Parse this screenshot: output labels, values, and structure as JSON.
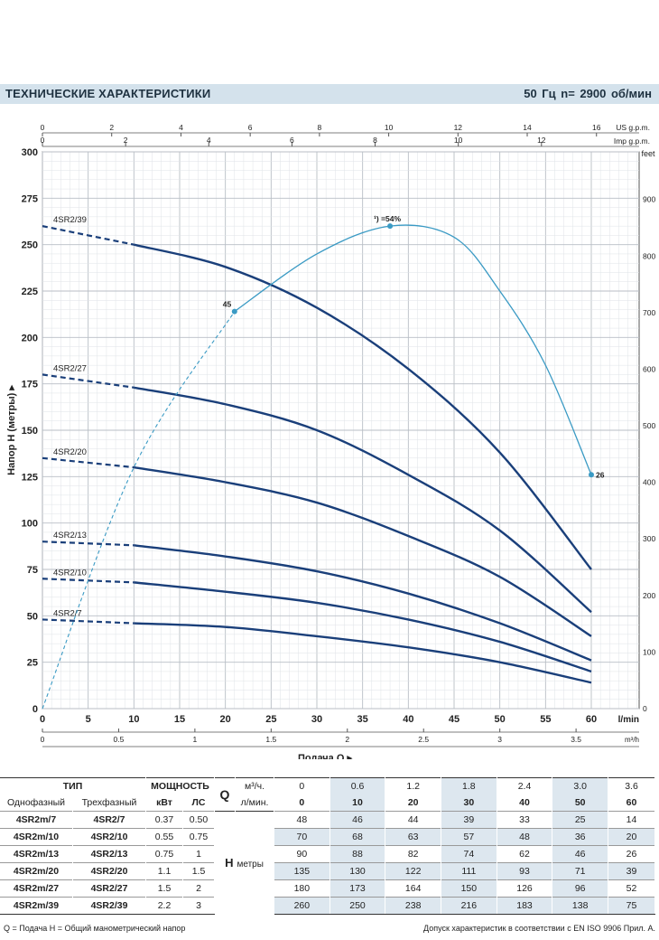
{
  "header": {
    "title": "ТЕХНИЧЕСКИЕ ХАРАКТЕРИСТИКИ",
    "speed": "50 Гц   n= 2900  об/мин"
  },
  "chart_data": {
    "type": "line",
    "xlabel": "Подача Q ▸",
    "ylabel": "Напор H (метры) ▸",
    "x_unit_main": "l/min",
    "x_unit_m3h": "m³/h",
    "x_unit_usgpm": "US g.p.m.",
    "x_unit_impgpm": "Imp g.p.m.",
    "y_unit_feet": "feet",
    "xlim": [
      0,
      60
    ],
    "ylim": [
      0,
      300
    ],
    "x_ticks": [
      0,
      5,
      10,
      15,
      20,
      25,
      30,
      35,
      40,
      45,
      50,
      55,
      60
    ],
    "y_ticks": [
      0,
      25,
      50,
      75,
      100,
      125,
      150,
      175,
      200,
      225,
      250,
      275,
      300
    ],
    "m3h_ticks": [
      "0",
      "0.5",
      "1",
      "1.5",
      "2",
      "2.5",
      "3",
      "3.5"
    ],
    "m3h_values": [
      0,
      0.5,
      1,
      1.5,
      2,
      2.5,
      3,
      3.5
    ],
    "usgpm_ticks": [
      "0",
      "2",
      "4",
      "6",
      "8",
      "10",
      "12",
      "14",
      "16"
    ],
    "usgpm_values": [
      0,
      2,
      4,
      6,
      8,
      10,
      12,
      14,
      16
    ],
    "impgpm_ticks": [
      "0",
      "2",
      "4",
      "6",
      "8",
      "10",
      "12"
    ],
    "impgpm_values": [
      0,
      2,
      4,
      6,
      8,
      10,
      12
    ],
    "feet_ticks": [
      "0",
      "100",
      "200",
      "300",
      "400",
      "500",
      "600",
      "700",
      "800",
      "900"
    ],
    "feet_values": [
      0,
      100,
      200,
      300,
      400,
      500,
      600,
      700,
      800,
      900
    ],
    "grid": true,
    "series": [
      {
        "name": "4SR2/7",
        "x": [
          0,
          10,
          20,
          30,
          40,
          50,
          60
        ],
        "y": [
          48,
          46,
          44,
          39,
          33,
          25,
          14
        ]
      },
      {
        "name": "4SR2/10",
        "x": [
          0,
          10,
          20,
          30,
          40,
          50,
          60
        ],
        "y": [
          70,
          68,
          63,
          57,
          48,
          36,
          20
        ]
      },
      {
        "name": "4SR2/13",
        "x": [
          0,
          10,
          20,
          30,
          40,
          50,
          60
        ],
        "y": [
          90,
          88,
          82,
          74,
          62,
          46,
          26
        ]
      },
      {
        "name": "4SR2/20",
        "x": [
          0,
          10,
          20,
          30,
          40,
          50,
          60
        ],
        "y": [
          135,
          130,
          122,
          111,
          93,
          71,
          39
        ]
      },
      {
        "name": "4SR2/27",
        "x": [
          0,
          10,
          20,
          30,
          40,
          50,
          60
        ],
        "y": [
          180,
          173,
          164,
          150,
          126,
          96,
          52
        ]
      },
      {
        "name": "4SR2/39",
        "x": [
          0,
          10,
          20,
          30,
          40,
          50,
          60
        ],
        "y": [
          260,
          250,
          238,
          216,
          183,
          138,
          75
        ]
      }
    ],
    "efficiency_curve": {
      "x": [
        0,
        10,
        21,
        30,
        38,
        45,
        50,
        55,
        60
      ],
      "y": [
        0,
        130,
        214,
        245,
        260,
        254,
        225,
        185,
        126
      ],
      "annotations": [
        {
          "x": 21,
          "y": 214,
          "label": "45"
        },
        {
          "x": 38,
          "y": 260,
          "label": "¹) =54%"
        },
        {
          "x": 60,
          "y": 126,
          "label": "26"
        }
      ]
    }
  },
  "table": {
    "type_header": "ТИП",
    "power_header": "МОЩНОСТЬ",
    "single_phase": "Однофазный",
    "three_phase": "Трехфазный",
    "kw": "кВт",
    "hp": "ЛС",
    "q_symbol": "Q",
    "m3h_unit": "м³/ч.",
    "lmin_unit": "л/мин.",
    "h_label": "H",
    "h_unit": "метры",
    "q_m3h": [
      "0",
      "0.6",
      "1.2",
      "1.8",
      "2.4",
      "3.0",
      "3.6"
    ],
    "q_lmin": [
      "0",
      "10",
      "20",
      "30",
      "40",
      "50",
      "60"
    ],
    "rows": [
      {
        "single": "4SR2m/7",
        "three": "4SR2/7",
        "kw": "0.37",
        "hp": "0.50",
        "h": [
          "48",
          "46",
          "44",
          "39",
          "33",
          "25",
          "14"
        ]
      },
      {
        "single": "4SR2m/10",
        "three": "4SR2/10",
        "kw": "0.55",
        "hp": "0.75",
        "h": [
          "70",
          "68",
          "63",
          "57",
          "48",
          "36",
          "20"
        ]
      },
      {
        "single": "4SR2m/13",
        "three": "4SR2/13",
        "kw": "0.75",
        "hp": "1",
        "h": [
          "90",
          "88",
          "82",
          "74",
          "62",
          "46",
          "26"
        ]
      },
      {
        "single": "4SR2m/20",
        "three": "4SR2/20",
        "kw": "1.1",
        "hp": "1.5",
        "h": [
          "135",
          "130",
          "122",
          "111",
          "93",
          "71",
          "39"
        ]
      },
      {
        "single": "4SR2m/27",
        "three": "4SR2/27",
        "kw": "1.5",
        "hp": "2",
        "h": [
          "180",
          "173",
          "164",
          "150",
          "126",
          "96",
          "52"
        ]
      },
      {
        "single": "4SR2m/39",
        "three": "4SR2/39",
        "kw": "2.2",
        "hp": "3",
        "h": [
          "260",
          "250",
          "238",
          "216",
          "183",
          "138",
          "75"
        ]
      }
    ]
  },
  "footer": {
    "legend": "Q = Подача   H = Общий манометрический напор",
    "standard": "Допуск характеристик в соответствии с EN ISO 9906 Прил. A."
  },
  "colors": {
    "curve": "#1a3f7a",
    "efficiency": "#3a9ac4",
    "grid": "#c8cdd3",
    "header_bg": "#d4e2ec"
  }
}
